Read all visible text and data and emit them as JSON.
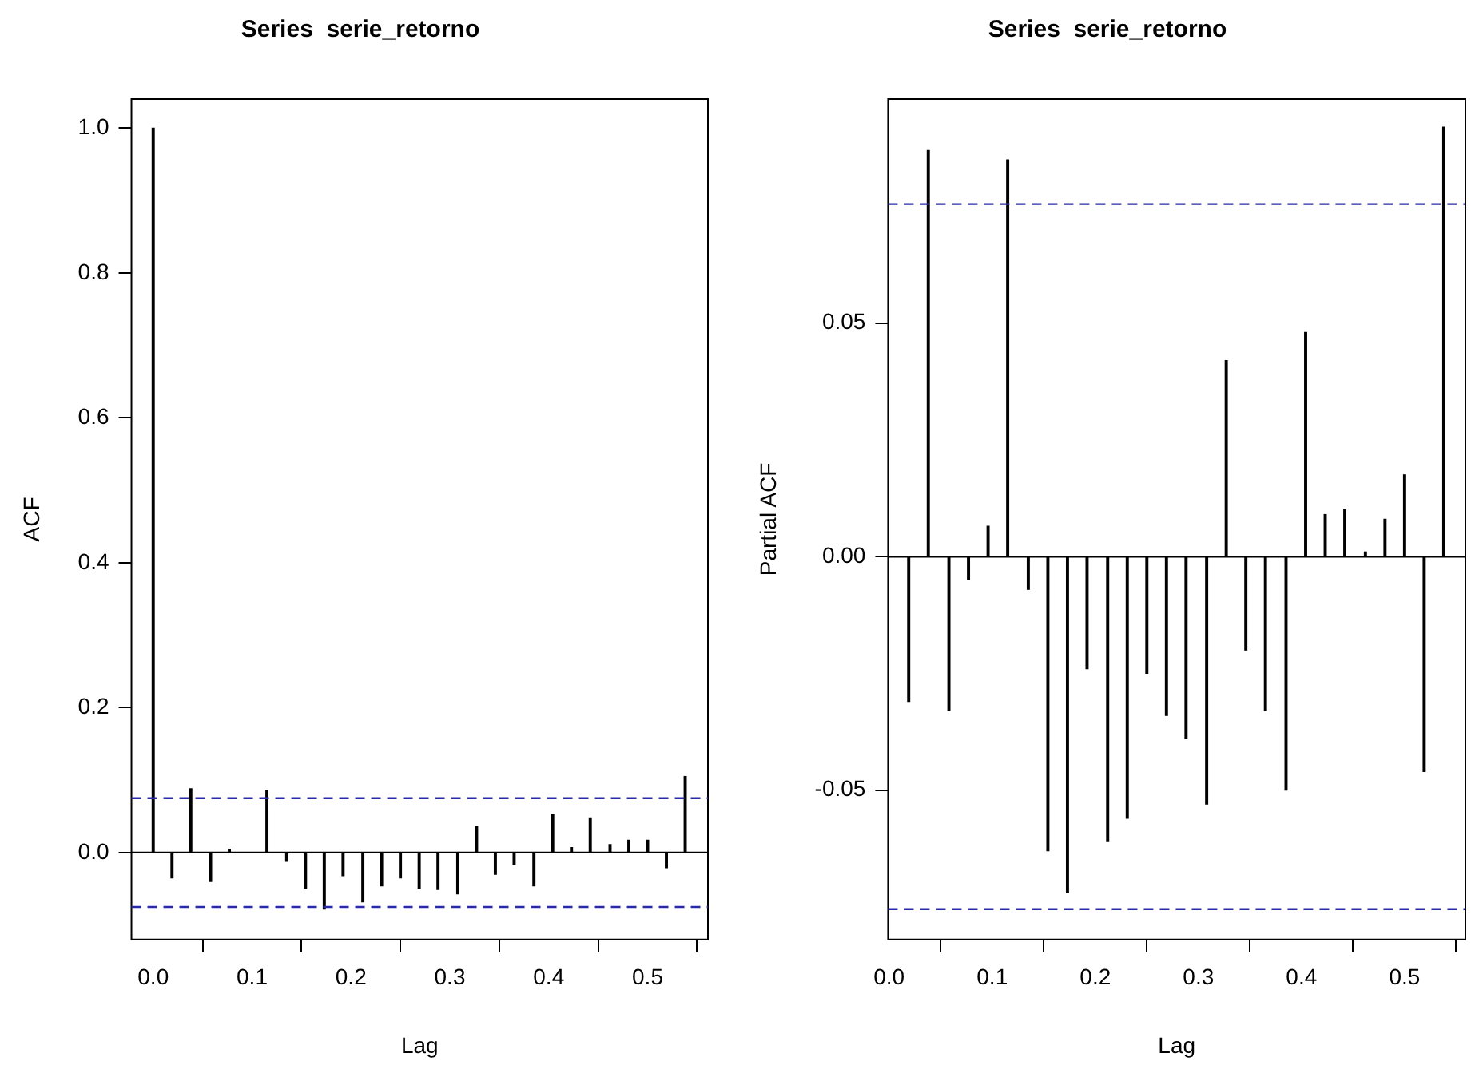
{
  "chart_data": [
    {
      "type": "bar",
      "title": "Series  serie_retorno",
      "xlabel": "Lag",
      "ylabel": "ACF",
      "color": "#000000",
      "x": [
        0,
        0.019,
        0.038,
        0.058,
        0.077,
        0.096,
        0.115,
        0.135,
        0.154,
        0.173,
        0.192,
        0.212,
        0.231,
        0.25,
        0.269,
        0.288,
        0.308,
        0.327,
        0.346,
        0.365,
        0.385,
        0.404,
        0.423,
        0.442,
        0.462,
        0.481,
        0.5,
        0.519,
        0.538
      ],
      "values": [
        1,
        -0.035,
        0.088,
        -0.04,
        0.004,
        null,
        0.086,
        -0.012,
        -0.049,
        -0.078,
        -0.032,
        -0.068,
        -0.046,
        -0.035,
        -0.049,
        -0.051,
        -0.057,
        0.036,
        -0.03,
        -0.016,
        -0.046,
        0.053,
        0.007,
        0.048,
        0.011,
        0.017,
        0.017,
        -0.021,
        0.105
      ],
      "xlim": [
        -0.022,
        0.561
      ],
      "xticks": [
        {
          "value": 0,
          "label": "0.0"
        },
        {
          "value": 0.1,
          "label": "0.1"
        },
        {
          "value": 0.2,
          "label": "0.2"
        },
        {
          "value": 0.3,
          "label": "0.3"
        },
        {
          "value": 0.4,
          "label": "0.4"
        },
        {
          "value": 0.5,
          "label": "0.5"
        }
      ],
      "ylim": [
        -0.12,
        1.04
      ],
      "yticks": [
        {
          "value": 0,
          "label": "0.0"
        },
        {
          "value": 0.2,
          "label": "0.2"
        },
        {
          "value": 0.4,
          "label": "0.4"
        },
        {
          "value": 0.6,
          "label": "0.6"
        },
        {
          "value": 0.8,
          "label": "0.8"
        },
        {
          "value": 1,
          "label": "1.0"
        }
      ],
      "ref_lines": [
        {
          "axis": "y",
          "value": 0,
          "color": "#000000",
          "line_style": "solid"
        },
        {
          "axis": "y",
          "value": 0.075,
          "color": "#2a2aa8",
          "line_style": "dashed"
        },
        {
          "axis": "y",
          "value": -0.075,
          "color": "#2a2aa8",
          "line_style": "dashed"
        }
      ]
    },
    {
      "type": "bar",
      "title": "Series  serie_retorno",
      "xlabel": "Lag",
      "ylabel": "Partial ACF",
      "color": "#000000",
      "x": [
        0.019,
        0.038,
        0.058,
        0.077,
        0.096,
        0.115,
        0.135,
        0.154,
        0.173,
        0.192,
        0.212,
        0.231,
        0.25,
        0.269,
        0.288,
        0.308,
        0.327,
        0.346,
        0.365,
        0.385,
        0.404,
        0.423,
        0.442,
        0.462,
        0.481,
        0.5,
        0.519,
        0.538
      ],
      "values": [
        -0.031,
        0.087,
        -0.033,
        -0.005,
        0.0065,
        0.085,
        -0.007,
        -0.063,
        -0.072,
        -0.024,
        -0.061,
        -0.056,
        -0.025,
        -0.034,
        -0.039,
        -0.053,
        0.042,
        -0.02,
        -0.033,
        -0.05,
        0.048,
        0.009,
        0.01,
        0.001,
        0.008,
        0.0175,
        -0.046,
        0.092
      ],
      "xlim": [
        -0.001,
        0.559
      ],
      "xticks": [
        {
          "value": 0,
          "label": "0.0"
        },
        {
          "value": 0.1,
          "label": "0.1"
        },
        {
          "value": 0.2,
          "label": "0.2"
        },
        {
          "value": 0.3,
          "label": "0.3"
        },
        {
          "value": 0.4,
          "label": "0.4"
        },
        {
          "value": 0.5,
          "label": "0.5"
        }
      ],
      "ylim": [
        -0.082,
        0.098
      ],
      "yticks": [
        {
          "value": -0.05,
          "label": "-0.05"
        },
        {
          "value": 0,
          "label": "0.00"
        },
        {
          "value": 0.05,
          "label": "0.05"
        }
      ],
      "ref_lines": [
        {
          "axis": "y",
          "value": 0,
          "color": "#000000",
          "line_style": "solid"
        },
        {
          "axis": "y",
          "value": 0.0755,
          "color": "#2a2aa8",
          "line_style": "dashed"
        },
        {
          "axis": "y",
          "value": -0.0755,
          "color": "#2a2aa8",
          "line_style": "dashed"
        }
      ]
    }
  ]
}
